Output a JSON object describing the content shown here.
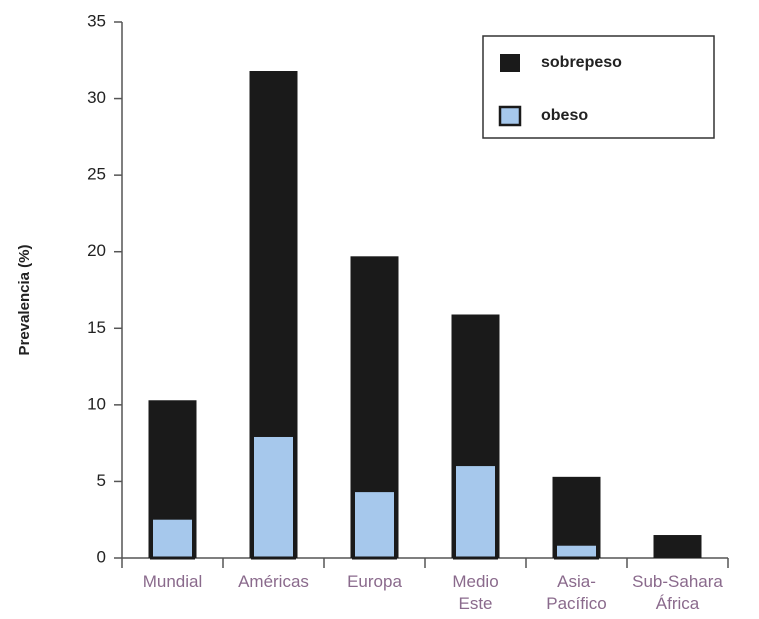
{
  "chart_data": {
    "type": "bar",
    "y_label": "Prevalencia (%)",
    "categories": [
      "Mundial",
      "Américas",
      "Europa",
      "Medio\nEste",
      "Asia-\nPacífico",
      "Sub-Sahara\nÁfrica"
    ],
    "series": [
      {
        "name": "sobrepeso",
        "color": "#1a1a1a",
        "values": [
          10.3,
          31.8,
          19.7,
          15.9,
          5.3,
          1.5
        ]
      },
      {
        "name": "obeso",
        "color": "#a6c8ec",
        "values": [
          2.6,
          8.0,
          4.4,
          6.1,
          0.9,
          null
        ]
      }
    ],
    "ylim": [
      0,
      35
    ],
    "yticks": [
      0,
      5,
      10,
      15,
      20,
      25,
      30,
      35
    ],
    "legend": "top-right"
  }
}
